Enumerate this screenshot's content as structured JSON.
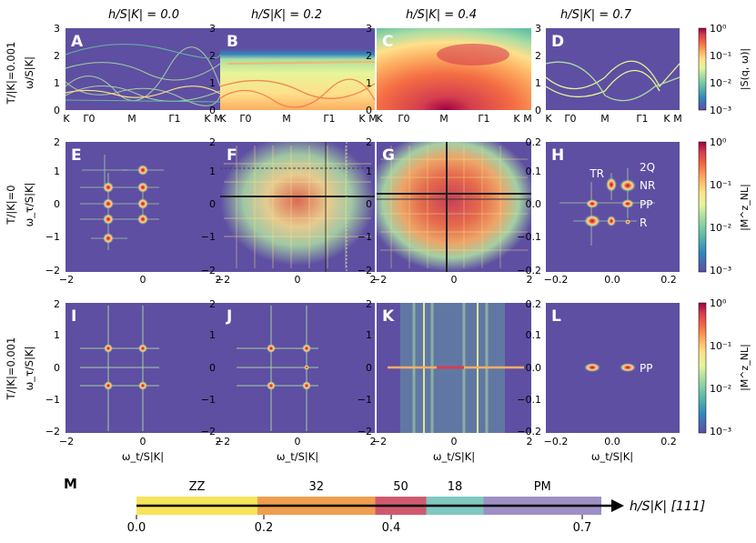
{
  "columns": [
    {
      "title": "h/S|K| = 0.0"
    },
    {
      "title": "h/S|K| = 0.2"
    },
    {
      "title": "h/S|K| = 0.4"
    },
    {
      "title": "h/S|K| = 0.7"
    }
  ],
  "rows": [
    {
      "label": "T/|K|=0.001",
      "ylabel": "ω/S|K|"
    },
    {
      "label": "T/|K|=0",
      "ylabel": "ω_τ/S|K|"
    },
    {
      "label": "T/|K|=0.001",
      "ylabel": "ω_τ/S|K|"
    }
  ],
  "panels": {
    "A": "A",
    "B": "B",
    "C": "C",
    "D": "D",
    "E": "E",
    "F": "F",
    "G": "G",
    "H": "H",
    "I": "I",
    "J": "J",
    "K": "K",
    "L": "L",
    "M": "M"
  },
  "row1_axes": {
    "yticks": [
      "0",
      "1",
      "2",
      "3"
    ],
    "xticks": [
      "K",
      "Γ0",
      "M",
      "Γ1",
      "K",
      "M"
    ]
  },
  "grid_axes": {
    "yticks": [
      "2",
      "1",
      "0",
      "−1",
      "−2"
    ],
    "xticks": [
      "−2",
      "0",
      "2"
    ],
    "xlabel": "ω_t/S|K|"
  },
  "zoom_axes": {
    "yticks": [
      "0.2",
      "0.1",
      "0.0",
      "−0.1",
      "−0.2"
    ],
    "xticks": [
      "−0.2",
      "0.0",
      "0.2"
    ],
    "xlabel": "ω_t/S|K|"
  },
  "colorbars": [
    {
      "label": "|S(q, ω)|",
      "ticks": [
        "10⁰",
        "10⁻¹",
        "10⁻²",
        "10⁻³"
      ]
    },
    {
      "label": "|M^z_NL|",
      "ticks": [
        "10⁰",
        "10⁻¹",
        "10⁻²",
        "10⁻³"
      ]
    },
    {
      "label": "|M^z_NL|",
      "ticks": [
        "10⁰",
        "10⁻¹",
        "10⁻²",
        "10⁻³"
      ]
    }
  ],
  "peak_labels_H": [
    "TR",
    "2Q",
    "NR",
    "PP",
    "R"
  ],
  "peak_labels_L": [
    "PP"
  ],
  "phase_diagram": {
    "axis_label": "h/S|K| [111]",
    "phases": [
      {
        "name": "ZZ",
        "start": 0.0,
        "end": 0.19,
        "color": "#f7e45a"
      },
      {
        "name": "32",
        "start": 0.19,
        "end": 0.375,
        "color": "#ef9e4f"
      },
      {
        "name": "50",
        "start": 0.375,
        "end": 0.455,
        "color": "#cf5a6e"
      },
      {
        "name": "18",
        "start": 0.455,
        "end": 0.545,
        "color": "#7fc8bf"
      },
      {
        "name": "PM",
        "start": 0.545,
        "end": 0.73,
        "color": "#9e8fc4"
      }
    ],
    "ticks": [
      "0.0",
      "0.2",
      "0.4",
      "0.7"
    ]
  },
  "colors": {
    "background": "#5e4fa2",
    "cmap": [
      "#5e4fa2",
      "#3288bd",
      "#66c2a5",
      "#abdda4",
      "#e6f598",
      "#fee08b",
      "#fdae61",
      "#f46d43",
      "#d53e4f",
      "#9e0142"
    ]
  }
}
